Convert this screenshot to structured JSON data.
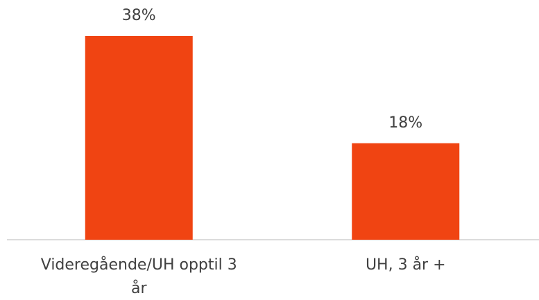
{
  "chart_data": {
    "type": "bar",
    "categories": [
      "Videregående/UH opptil 3 år",
      "UH, 3 år +"
    ],
    "values": [
      38,
      18
    ],
    "value_labels": [
      "38%",
      "18%"
    ],
    "color": "#f04412"
  }
}
